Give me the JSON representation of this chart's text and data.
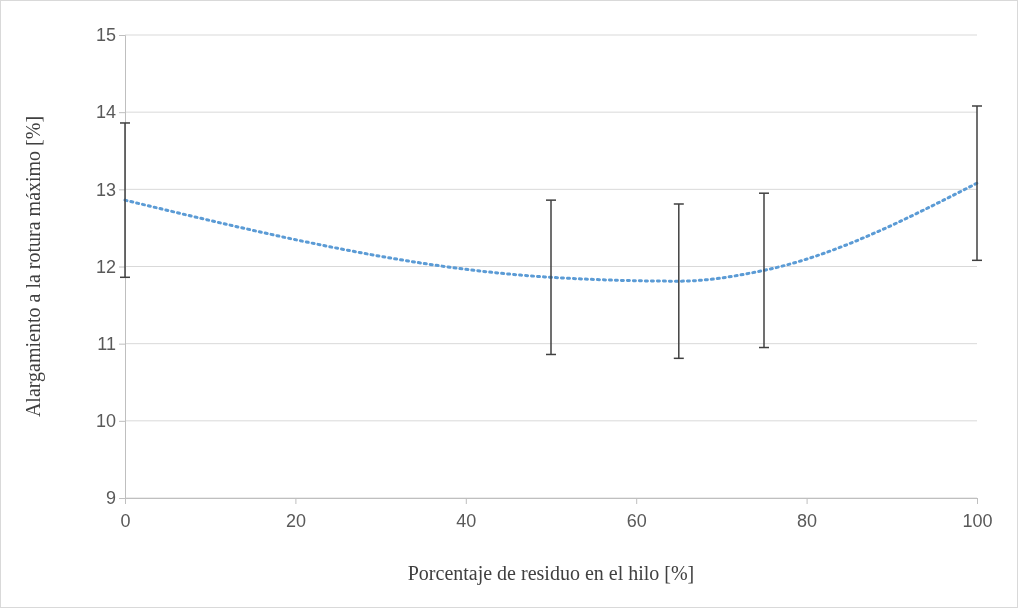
{
  "chart_data": {
    "type": "line",
    "xlabel": "Porcentaje de residuo en el hilo [%]",
    "ylabel": "Alargamiento a la rotura máximo [%]",
    "x": [
      0,
      50,
      65,
      75,
      100
    ],
    "series": [
      {
        "color": "#5b9bd5",
        "values": [
          12.86,
          11.86,
          11.81,
          11.95,
          13.08
        ],
        "errors": [
          1,
          1,
          1,
          1,
          1
        ]
      }
    ],
    "xlim": [
      0,
      100
    ],
    "xticks": [
      0,
      20,
      40,
      60,
      80,
      100
    ],
    "ylim": [
      9,
      15
    ],
    "yticks": [
      9,
      10,
      11,
      12,
      13,
      14,
      15
    ],
    "grid": "y",
    "line_style": "dotted",
    "marker": "none"
  }
}
